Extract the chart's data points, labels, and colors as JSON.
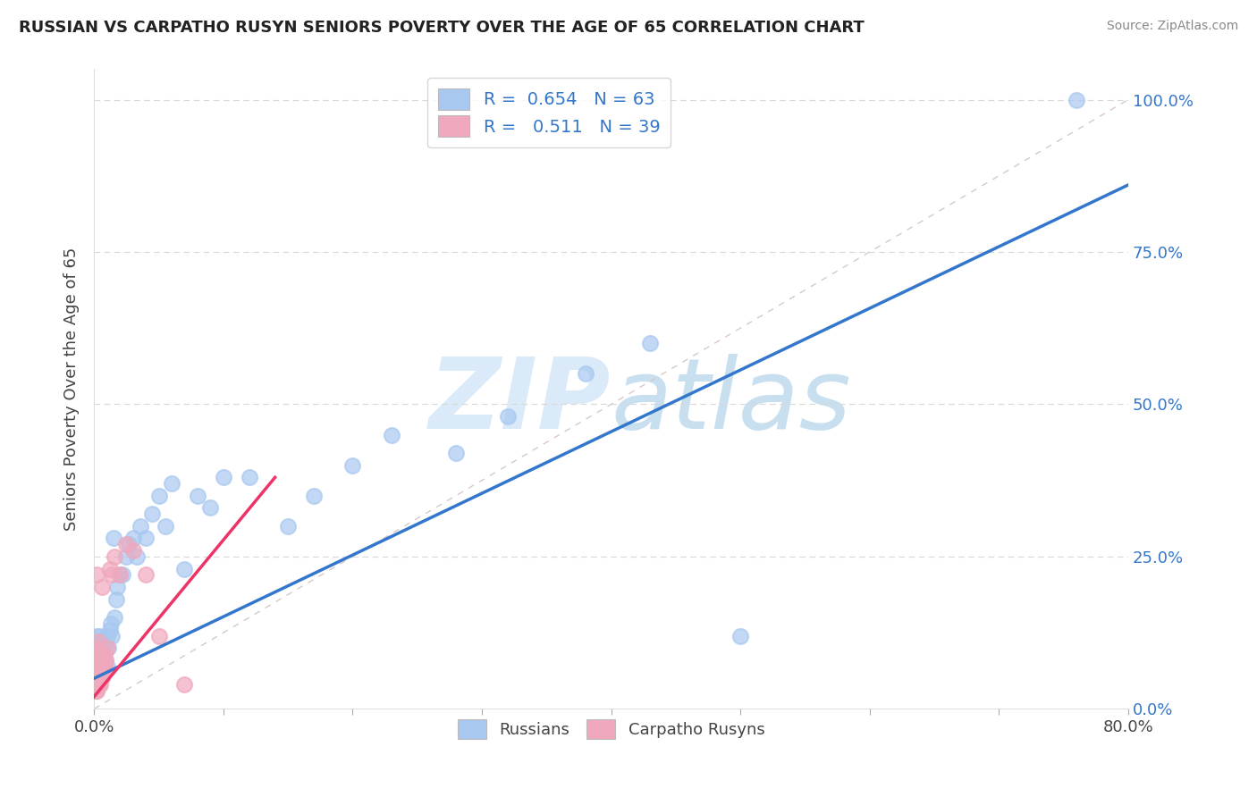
{
  "title": "RUSSIAN VS CARPATHO RUSYN SENIORS POVERTY OVER THE AGE OF 65 CORRELATION CHART",
  "source": "Source: ZipAtlas.com",
  "ylabel": "Seniors Poverty Over the Age of 65",
  "legend_russians": "Russians",
  "legend_carpatho": "Carpatho Rusyns",
  "R_russian": 0.654,
  "N_russian": 63,
  "R_carpatho": 0.511,
  "N_carpatho": 39,
  "russian_color": "#a8c8f0",
  "carpatho_color": "#f0a8bc",
  "russian_line_color": "#3377cc",
  "carpatho_line_color": "#ee3366",
  "watermark_color": "#daeaf8",
  "russians_x": [
    0.001,
    0.001,
    0.001,
    0.002,
    0.002,
    0.002,
    0.002,
    0.003,
    0.003,
    0.003,
    0.003,
    0.004,
    0.004,
    0.004,
    0.004,
    0.005,
    0.005,
    0.005,
    0.006,
    0.006,
    0.006,
    0.007,
    0.007,
    0.008,
    0.008,
    0.009,
    0.01,
    0.01,
    0.011,
    0.012,
    0.013,
    0.014,
    0.015,
    0.016,
    0.017,
    0.018,
    0.02,
    0.022,
    0.025,
    0.027,
    0.03,
    0.033,
    0.036,
    0.04,
    0.045,
    0.05,
    0.055,
    0.06,
    0.07,
    0.08,
    0.09,
    0.1,
    0.12,
    0.15,
    0.17,
    0.2,
    0.23,
    0.28,
    0.32,
    0.38,
    0.43,
    0.5,
    0.76
  ],
  "russians_y": [
    0.05,
    0.08,
    0.1,
    0.04,
    0.06,
    0.08,
    0.12,
    0.05,
    0.07,
    0.09,
    0.11,
    0.04,
    0.06,
    0.08,
    0.12,
    0.05,
    0.07,
    0.1,
    0.06,
    0.08,
    0.11,
    0.06,
    0.09,
    0.07,
    0.1,
    0.08,
    0.07,
    0.12,
    0.1,
    0.13,
    0.14,
    0.12,
    0.28,
    0.15,
    0.18,
    0.2,
    0.22,
    0.22,
    0.25,
    0.27,
    0.28,
    0.25,
    0.3,
    0.28,
    0.32,
    0.35,
    0.3,
    0.37,
    0.23,
    0.35,
    0.33,
    0.38,
    0.38,
    0.3,
    0.35,
    0.4,
    0.45,
    0.42,
    0.48,
    0.55,
    0.6,
    0.12,
    1.0
  ],
  "carpatho_x": [
    0.001,
    0.001,
    0.001,
    0.001,
    0.002,
    0.002,
    0.002,
    0.002,
    0.002,
    0.003,
    0.003,
    0.003,
    0.003,
    0.004,
    0.004,
    0.004,
    0.005,
    0.005,
    0.005,
    0.006,
    0.006,
    0.007,
    0.007,
    0.008,
    0.008,
    0.009,
    0.01,
    0.012,
    0.014,
    0.016,
    0.02,
    0.025,
    0.03,
    0.04,
    0.05,
    0.07,
    0.002,
    0.003,
    0.004
  ],
  "carpatho_y": [
    0.03,
    0.05,
    0.07,
    0.1,
    0.03,
    0.05,
    0.07,
    0.09,
    0.22,
    0.04,
    0.06,
    0.08,
    0.11,
    0.05,
    0.07,
    0.09,
    0.04,
    0.06,
    0.08,
    0.05,
    0.2,
    0.06,
    0.08,
    0.07,
    0.09,
    0.08,
    0.1,
    0.23,
    0.22,
    0.25,
    0.22,
    0.27,
    0.26,
    0.22,
    0.12,
    0.04,
    0.03,
    0.06,
    0.04
  ],
  "xlim": [
    0.0,
    0.8
  ],
  "ylim": [
    0.0,
    1.05
  ],
  "xticks": [
    0.0,
    0.1,
    0.2,
    0.3,
    0.4,
    0.5,
    0.6,
    0.7,
    0.8
  ],
  "xtick_labels": [
    "0.0%",
    "",
    "",
    "",
    "",
    "",
    "",
    "",
    "80.0%"
  ],
  "yticks": [
    0.0,
    0.25,
    0.5,
    0.75,
    1.0
  ],
  "ytick_labels": [
    "0.0%",
    "25.0%",
    "50.0%",
    "75.0%",
    "100.0%"
  ]
}
